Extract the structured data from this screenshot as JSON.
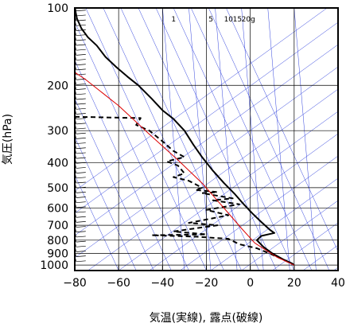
{
  "chart_data": {
    "type": "skew-t",
    "xlabel": "気温(実線), 露点(破線)",
    "ylabel": "気圧(hPa)",
    "xlim": [
      -80,
      40
    ],
    "ylim": [
      1050,
      100
    ],
    "y_scale": "log",
    "x_ticks": [
      -80,
      -60,
      -40,
      -20,
      0,
      20,
      40
    ],
    "x_tick_labels": [
      "−80",
      "−60",
      "−40",
      "−20",
      "0",
      "20",
      "40"
    ],
    "y_ticks": [
      100,
      200,
      300,
      400,
      500,
      600,
      700,
      800,
      900,
      1000
    ],
    "y_tick_labels": [
      "100",
      "200",
      "300",
      "400",
      "500",
      "600",
      "700",
      "800",
      "900",
      "1000"
    ],
    "mixing_ratio_labels": [
      "1",
      "5",
      "10",
      "15",
      "20g"
    ],
    "background_lines_color": "#3344dd",
    "grid": true,
    "series": [
      {
        "style": "solid",
        "color": "#000000",
        "points": [
          [
            -80,
            100
          ],
          [
            -79,
            110
          ],
          [
            -77,
            120
          ],
          [
            -74,
            130
          ],
          [
            -70,
            140
          ],
          [
            -66,
            155
          ],
          [
            -61,
            170
          ],
          [
            -56,
            185
          ],
          [
            -51,
            200
          ],
          [
            -45,
            225
          ],
          [
            -40,
            250
          ],
          [
            -35,
            270
          ],
          [
            -30,
            300
          ],
          [
            -26,
            340
          ],
          [
            -22,
            380
          ],
          [
            -17,
            430
          ],
          [
            -12,
            480
          ],
          [
            -7,
            530
          ],
          [
            -3,
            580
          ],
          [
            1,
            630
          ],
          [
            5,
            680
          ],
          [
            9,
            730
          ],
          [
            11,
            750
          ],
          [
            5,
            770
          ],
          [
            3,
            800
          ],
          [
            6,
            850
          ],
          [
            10,
            900
          ],
          [
            15,
            950
          ],
          [
            19,
            985
          ],
          [
            20,
            1000
          ]
        ]
      },
      {
        "style": "dashed",
        "color": "#000000",
        "points": [
          [
            -80,
            265
          ],
          [
            -50,
            268
          ],
          [
            -52,
            285
          ],
          [
            -46,
            300
          ],
          [
            -40,
            330
          ],
          [
            -35,
            360
          ],
          [
            -30,
            380
          ],
          [
            -38,
            395
          ],
          [
            -33,
            410
          ],
          [
            -30,
            440
          ],
          [
            -35,
            455
          ],
          [
            -28,
            470
          ],
          [
            -22,
            500
          ],
          [
            -25,
            510
          ],
          [
            -15,
            520
          ],
          [
            -22,
            525
          ],
          [
            -8,
            550
          ],
          [
            -17,
            560
          ],
          [
            -5,
            580
          ],
          [
            -20,
            610
          ],
          [
            -10,
            640
          ],
          [
            -20,
            665
          ],
          [
            -28,
            685
          ],
          [
            -15,
            700
          ],
          [
            -35,
            740
          ],
          [
            -20,
            760
          ],
          [
            -45,
            765
          ],
          [
            -25,
            775
          ],
          [
            -10,
            790
          ],
          [
            -5,
            830
          ],
          [
            3,
            860
          ],
          [
            8,
            895
          ],
          [
            13,
            935
          ],
          [
            15,
            950
          ],
          [
            19,
            990
          ]
        ]
      },
      {
        "style": "solid",
        "color": "#dd0000",
        "points": [
          [
            20,
            1000
          ],
          [
            12,
            930
          ],
          [
            2,
            820
          ],
          [
            -4,
            720
          ],
          [
            -12,
            600
          ],
          [
            -22,
            480
          ],
          [
            -33,
            390
          ],
          [
            -46,
            310
          ],
          [
            -60,
            240
          ],
          [
            -75,
            190
          ],
          [
            -80,
            178
          ]
        ]
      }
    ],
    "wind_barbs_x": -75
  }
}
